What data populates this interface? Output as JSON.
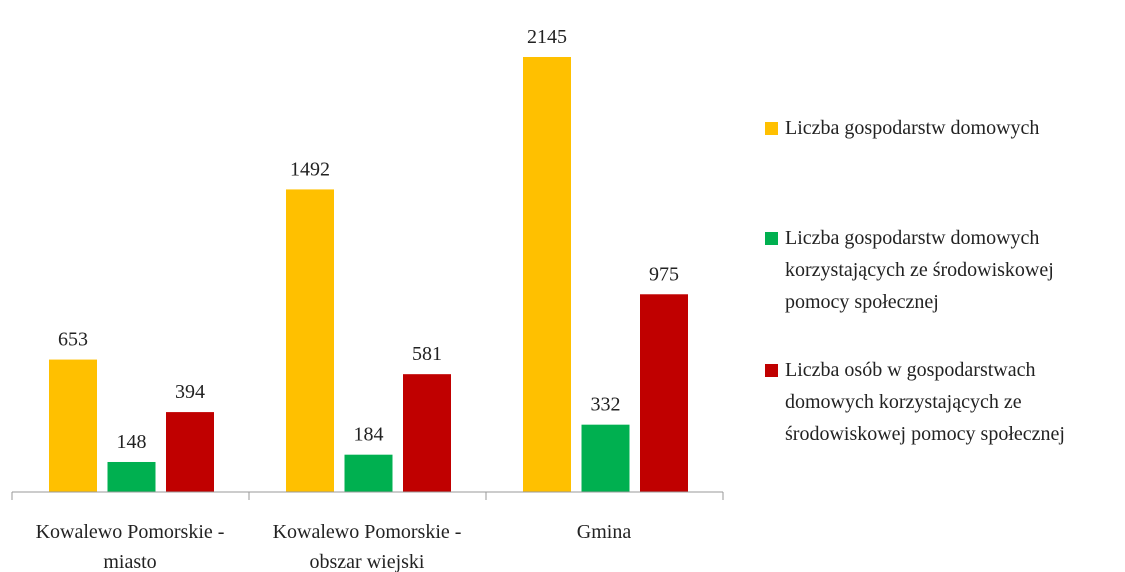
{
  "chart_data": {
    "type": "bar",
    "categories": [
      "Kowalewo Pomorskie - miasto",
      "Kowalewo Pomorskie - obszar wiejski",
      "Gmina"
    ],
    "series": [
      {
        "name": "Liczba gospodarstw domowych",
        "color": "#ffc000",
        "values": [
          653,
          1492,
          2145
        ]
      },
      {
        "name": "Liczba gospodarstw domowych korzystających ze środowiskowej pomocy społecznej",
        "color": "#00b050",
        "values": [
          148,
          184,
          332
        ]
      },
      {
        "name": "Liczba osób w gospodarstwach domowych korzystających ze środowiskowej pomocy społecznej",
        "color": "#c00000",
        "values": [
          394,
          581,
          975
        ]
      }
    ],
    "legend": "right"
  }
}
